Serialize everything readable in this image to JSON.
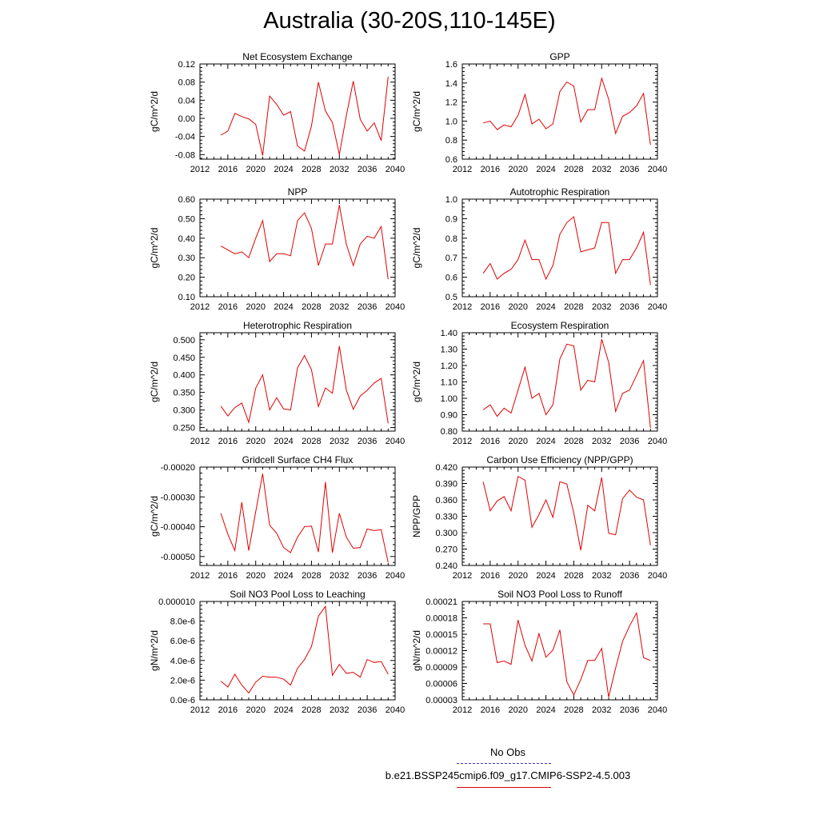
{
  "page": {
    "title": "Australia (30-20S,110-145E)"
  },
  "legend": {
    "entries": [
      {
        "label": "No Obs",
        "color": "#3333cc",
        "style": "dashed"
      },
      {
        "label": "b.e21.BSSP245cmip6.f09_g17.CMIP6-SSP2-4.5.003",
        "color": "#e00000",
        "style": "solid"
      }
    ]
  },
  "chart_data": [
    {
      "type": "line",
      "title": "Net Ecosystem Exchange",
      "ylabel": "gC/m^2/d",
      "xlim": [
        2012,
        2040
      ],
      "xticks": [
        2012,
        2016,
        2020,
        2024,
        2028,
        2032,
        2036,
        2040
      ],
      "xtick_labels": [
        "2012",
        "2016",
        "2020",
        "2024",
        "2028",
        "2032",
        "2036",
        "2040"
      ],
      "ylim": [
        -0.09,
        0.12
      ],
      "yticks": [
        -0.08,
        -0.04,
        0.0,
        0.04,
        0.08,
        0.12
      ],
      "ytick_labels": [
        "-0.08",
        "-0.04",
        "0.00",
        "0.04",
        "0.08",
        "0.12"
      ],
      "series": [
        {
          "color": "#e00000",
          "x": [
            2015,
            2016,
            2017,
            2018,
            2019,
            2020,
            2021,
            2022,
            2023,
            2024,
            2025,
            2026,
            2027,
            2028,
            2029,
            2030,
            2031,
            2032,
            2033,
            2034,
            2035,
            2036,
            2037,
            2038,
            2039
          ],
          "values": [
            -0.037,
            -0.028,
            0.011,
            0.004,
            -0.001,
            -0.013,
            -0.082,
            0.049,
            0.031,
            0.007,
            0.015,
            -0.061,
            -0.072,
            -0.017,
            0.08,
            0.016,
            -0.009,
            -0.08,
            0.006,
            0.082,
            -0.002,
            -0.028,
            -0.01,
            -0.049,
            0.092
          ]
        }
      ]
    },
    {
      "type": "line",
      "title": "GPP",
      "ylabel": "gC/m^2/d",
      "xlim": [
        2012,
        2040
      ],
      "xticks": [
        2012,
        2016,
        2020,
        2024,
        2028,
        2032,
        2036,
        2040
      ],
      "xtick_labels": [
        "2012",
        "2016",
        "2020",
        "2024",
        "2028",
        "2032",
        "2036",
        "2040"
      ],
      "ylim": [
        0.6,
        1.6
      ],
      "yticks": [
        0.6,
        0.8,
        1.0,
        1.2,
        1.4,
        1.6
      ],
      "ytick_labels": [
        "0.6",
        "0.8",
        "1.0",
        "1.2",
        "1.4",
        "1.6"
      ],
      "series": [
        {
          "color": "#e00000",
          "x": [
            2015,
            2016,
            2017,
            2018,
            2019,
            2020,
            2021,
            2022,
            2023,
            2024,
            2025,
            2026,
            2027,
            2028,
            2029,
            2030,
            2031,
            2032,
            2033,
            2034,
            2035,
            2036,
            2037,
            2038,
            2039
          ],
          "values": [
            0.98,
            1.0,
            0.91,
            0.96,
            0.94,
            1.06,
            1.28,
            0.97,
            1.02,
            0.92,
            0.97,
            1.31,
            1.41,
            1.37,
            0.99,
            1.12,
            1.12,
            1.45,
            1.23,
            0.87,
            1.05,
            1.09,
            1.16,
            1.29,
            0.75
          ]
        }
      ]
    },
    {
      "type": "line",
      "title": "NPP",
      "ylabel": "gC/m^2/d",
      "xlim": [
        2012,
        2040
      ],
      "xticks": [
        2012,
        2016,
        2020,
        2024,
        2028,
        2032,
        2036,
        2040
      ],
      "xtick_labels": [
        "2012",
        "2016",
        "2020",
        "2024",
        "2028",
        "2032",
        "2036",
        "2040"
      ],
      "ylim": [
        0.1,
        0.6
      ],
      "yticks": [
        0.1,
        0.2,
        0.3,
        0.4,
        0.5,
        0.6
      ],
      "ytick_labels": [
        "0.10",
        "0.20",
        "0.30",
        "0.40",
        "0.50",
        "0.60"
      ],
      "series": [
        {
          "color": "#e00000",
          "x": [
            2015,
            2016,
            2017,
            2018,
            2019,
            2020,
            2021,
            2022,
            2023,
            2024,
            2025,
            2026,
            2027,
            2028,
            2029,
            2030,
            2031,
            2032,
            2033,
            2034,
            2035,
            2036,
            2037,
            2038,
            2039
          ],
          "values": [
            0.36,
            0.34,
            0.32,
            0.33,
            0.3,
            0.4,
            0.49,
            0.28,
            0.32,
            0.32,
            0.31,
            0.49,
            0.53,
            0.45,
            0.26,
            0.37,
            0.37,
            0.57,
            0.37,
            0.26,
            0.37,
            0.41,
            0.4,
            0.46,
            0.19
          ]
        }
      ]
    },
    {
      "type": "line",
      "title": "Autotrophic Respiration",
      "ylabel": "gC/m^2/d",
      "xlim": [
        2012,
        2040
      ],
      "xticks": [
        2012,
        2016,
        2020,
        2024,
        2028,
        2032,
        2036,
        2040
      ],
      "xtick_labels": [
        "2012",
        "2016",
        "2020",
        "2024",
        "2028",
        "2032",
        "2036",
        "2040"
      ],
      "ylim": [
        0.5,
        1.0
      ],
      "yticks": [
        0.5,
        0.6,
        0.7,
        0.8,
        0.9,
        1.0
      ],
      "ytick_labels": [
        "0.5",
        "0.6",
        "0.7",
        "0.8",
        "0.9",
        "1.0"
      ],
      "series": [
        {
          "color": "#e00000",
          "x": [
            2015,
            2016,
            2017,
            2018,
            2019,
            2020,
            2021,
            2022,
            2023,
            2024,
            2025,
            2026,
            2027,
            2028,
            2029,
            2030,
            2031,
            2032,
            2033,
            2034,
            2035,
            2036,
            2037,
            2038,
            2039
          ],
          "values": [
            0.62,
            0.67,
            0.59,
            0.62,
            0.64,
            0.69,
            0.79,
            0.69,
            0.69,
            0.59,
            0.66,
            0.82,
            0.88,
            0.91,
            0.73,
            0.74,
            0.75,
            0.88,
            0.88,
            0.62,
            0.69,
            0.69,
            0.75,
            0.83,
            0.56
          ]
        }
      ]
    },
    {
      "type": "line",
      "title": "Heterotrophic Respiration",
      "ylabel": "gC/m^2/d",
      "xlim": [
        2012,
        2040
      ],
      "xticks": [
        2012,
        2016,
        2020,
        2024,
        2028,
        2032,
        2036,
        2040
      ],
      "xtick_labels": [
        "2012",
        "2016",
        "2020",
        "2024",
        "2028",
        "2032",
        "2036",
        "2040"
      ],
      "ylim": [
        0.24,
        0.52
      ],
      "yticks": [
        0.25,
        0.3,
        0.35,
        0.4,
        0.45,
        0.5
      ],
      "ytick_labels": [
        "0.250",
        "0.300",
        "0.350",
        "0.400",
        "0.450",
        "0.500"
      ],
      "series": [
        {
          "color": "#e00000",
          "x": [
            2015,
            2016,
            2017,
            2018,
            2019,
            2020,
            2021,
            2022,
            2023,
            2024,
            2025,
            2026,
            2027,
            2028,
            2029,
            2030,
            2031,
            2032,
            2033,
            2034,
            2035,
            2036,
            2037,
            2038,
            2039
          ],
          "values": [
            0.311,
            0.283,
            0.307,
            0.32,
            0.265,
            0.362,
            0.4,
            0.3,
            0.335,
            0.303,
            0.3,
            0.42,
            0.455,
            0.415,
            0.31,
            0.363,
            0.348,
            0.482,
            0.357,
            0.302,
            0.34,
            0.356,
            0.377,
            0.39,
            0.262
          ]
        }
      ]
    },
    {
      "type": "line",
      "title": "Ecosystem Respiration",
      "ylabel": "gC/m^2/d",
      "xlim": [
        2012,
        2040
      ],
      "xticks": [
        2012,
        2016,
        2020,
        2024,
        2028,
        2032,
        2036,
        2040
      ],
      "xtick_labels": [
        "2012",
        "2016",
        "2020",
        "2024",
        "2028",
        "2032",
        "2036",
        "2040"
      ],
      "ylim": [
        0.8,
        1.4
      ],
      "yticks": [
        0.8,
        0.9,
        1.0,
        1.1,
        1.2,
        1.3,
        1.4
      ],
      "ytick_labels": [
        "0.80",
        "0.90",
        "1.00",
        "1.10",
        "1.20",
        "1.30",
        "1.40"
      ],
      "series": [
        {
          "color": "#e00000",
          "x": [
            2015,
            2016,
            2017,
            2018,
            2019,
            2020,
            2021,
            2022,
            2023,
            2024,
            2025,
            2026,
            2027,
            2028,
            2029,
            2030,
            2031,
            2032,
            2033,
            2034,
            2035,
            2036,
            2037,
            2038,
            2039
          ],
          "values": [
            0.93,
            0.96,
            0.89,
            0.94,
            0.91,
            1.05,
            1.19,
            1.0,
            1.03,
            0.9,
            0.96,
            1.24,
            1.33,
            1.32,
            1.05,
            1.11,
            1.1,
            1.36,
            1.22,
            0.92,
            1.03,
            1.05,
            1.14,
            1.23,
            0.82
          ]
        }
      ]
    },
    {
      "type": "line",
      "title": "Gridcell Surface CH4 Flux",
      "ylabel": "gC/m^2/d",
      "xlim": [
        2012,
        2040
      ],
      "xticks": [
        2012,
        2016,
        2020,
        2024,
        2028,
        2032,
        2036,
        2040
      ],
      "xtick_labels": [
        "2012",
        "2016",
        "2020",
        "2024",
        "2028",
        "2032",
        "2036",
        "2040"
      ],
      "ylim": [
        -0.00053,
        -0.0002
      ],
      "yticks": [
        -0.0005,
        -0.0004,
        -0.0003,
        -0.0002
      ],
      "ytick_labels": [
        "-0.00050",
        "-0.00040",
        "-0.00030",
        "-0.00020"
      ],
      "series": [
        {
          "color": "#e00000",
          "x": [
            2015,
            2016,
            2017,
            2018,
            2019,
            2020,
            2021,
            2022,
            2023,
            2024,
            2025,
            2026,
            2027,
            2028,
            2029,
            2030,
            2031,
            2032,
            2033,
            2034,
            2035,
            2036,
            2037,
            2038,
            2039
          ],
          "values": [
            -0.000355,
            -0.000425,
            -0.00048,
            -0.000318,
            -0.00048,
            -0.00035,
            -0.000222,
            -0.000395,
            -0.000422,
            -0.00047,
            -0.000487,
            -0.000435,
            -0.0004,
            -0.000398,
            -0.000485,
            -0.00025,
            -0.000487,
            -0.000355,
            -0.000435,
            -0.000472,
            -0.00047,
            -0.000408,
            -0.000413,
            -0.00041,
            -0.00052
          ]
        }
      ]
    },
    {
      "type": "line",
      "title": "Carbon Use Efficiency (NPP/GPP)",
      "ylabel": "NPP/GPP",
      "xlim": [
        2012,
        2040
      ],
      "xticks": [
        2012,
        2016,
        2020,
        2024,
        2028,
        2032,
        2036,
        2040
      ],
      "xtick_labels": [
        "2012",
        "2016",
        "2020",
        "2024",
        "2028",
        "2032",
        "2036",
        "2040"
      ],
      "ylim": [
        0.24,
        0.42
      ],
      "yticks": [
        0.24,
        0.27,
        0.3,
        0.33,
        0.36,
        0.39,
        0.42
      ],
      "ytick_labels": [
        "0.240",
        "0.270",
        "0.300",
        "0.330",
        "0.360",
        "0.390",
        "0.420"
      ],
      "series": [
        {
          "color": "#e00000",
          "x": [
            2015,
            2016,
            2017,
            2018,
            2019,
            2020,
            2021,
            2022,
            2023,
            2024,
            2025,
            2026,
            2027,
            2028,
            2029,
            2030,
            2031,
            2032,
            2033,
            2034,
            2035,
            2036,
            2037,
            2038,
            2039
          ],
          "values": [
            0.393,
            0.34,
            0.358,
            0.366,
            0.34,
            0.403,
            0.396,
            0.31,
            0.333,
            0.36,
            0.328,
            0.393,
            0.389,
            0.336,
            0.268,
            0.35,
            0.34,
            0.401,
            0.299,
            0.296,
            0.362,
            0.378,
            0.365,
            0.36,
            0.277
          ]
        }
      ]
    },
    {
      "type": "line",
      "title": "Soil NO3 Pool Loss to Leaching",
      "ylabel": "gN/m^2/d",
      "xlim": [
        2012,
        2040
      ],
      "xticks": [
        2012,
        2016,
        2020,
        2024,
        2028,
        2032,
        2036,
        2040
      ],
      "xtick_labels": [
        "2012",
        "2016",
        "2020",
        "2024",
        "2028",
        "2032",
        "2036",
        "2040"
      ],
      "ylim": [
        0,
        1e-05
      ],
      "yticks": [
        0,
        2e-06,
        4e-06,
        6e-06,
        8e-06,
        1e-05
      ],
      "ytick_labels": [
        "0.0e-6",
        "2.0e-6",
        "4.0e-6",
        "6.0e-6",
        "8.0e-6",
        "0.000010"
      ],
      "series": [
        {
          "color": "#e00000",
          "x": [
            2015,
            2016,
            2017,
            2018,
            2019,
            2020,
            2021,
            2022,
            2023,
            2024,
            2025,
            2026,
            2027,
            2028,
            2029,
            2030,
            2031,
            2032,
            2033,
            2034,
            2035,
            2036,
            2037,
            2038,
            2039
          ],
          "values": [
            1.9e-06,
            1.3e-06,
            2.6e-06,
            1.5e-06,
            7e-07,
            1.8e-06,
            2.4e-06,
            2.3e-06,
            2.3e-06,
            2.1e-06,
            1.5e-06,
            3.2e-06,
            4.1e-06,
            5.4e-06,
            8.5e-06,
            9.5e-06,
            2.5e-06,
            3.6e-06,
            2.7e-06,
            2.8e-06,
            2.3e-06,
            4.1e-06,
            3.8e-06,
            3.9e-06,
            2.6e-06
          ]
        }
      ]
    },
    {
      "type": "line",
      "title": "Soil NO3 Pool Loss to Runoff",
      "ylabel": "gN/m^2/d",
      "xlim": [
        2012,
        2040
      ],
      "xticks": [
        2012,
        2016,
        2020,
        2024,
        2028,
        2032,
        2036,
        2040
      ],
      "xtick_labels": [
        "2012",
        "2016",
        "2020",
        "2024",
        "2028",
        "2032",
        "2036",
        "2040"
      ],
      "ylim": [
        3e-05,
        0.00021
      ],
      "yticks": [
        3e-05,
        6e-05,
        9e-05,
        0.00012,
        0.00015,
        0.00018,
        0.00021
      ],
      "ytick_labels": [
        "0.00003",
        "0.00006",
        "0.00009",
        "0.00012",
        "0.00015",
        "0.00018",
        "0.00021"
      ],
      "series": [
        {
          "color": "#e00000",
          "x": [
            2015,
            2016,
            2017,
            2018,
            2019,
            2020,
            2021,
            2022,
            2023,
            2024,
            2025,
            2026,
            2027,
            2028,
            2029,
            2030,
            2031,
            2032,
            2033,
            2034,
            2035,
            2036,
            2037,
            2038,
            2039
          ],
          "values": [
            0.000169,
            0.000169,
            9.8e-05,
            0.000101,
            9.5e-05,
            0.000176,
            0.00013,
            0.000101,
            0.000151,
            0.000108,
            0.000121,
            0.000158,
            6.3e-05,
            3.9e-05,
            6.7e-05,
            0.000102,
            0.000102,
            0.000124,
            3.5e-05,
            8.8e-05,
            0.000137,
            0.000165,
            0.000189,
            0.000107,
            0.000102
          ]
        }
      ]
    }
  ]
}
